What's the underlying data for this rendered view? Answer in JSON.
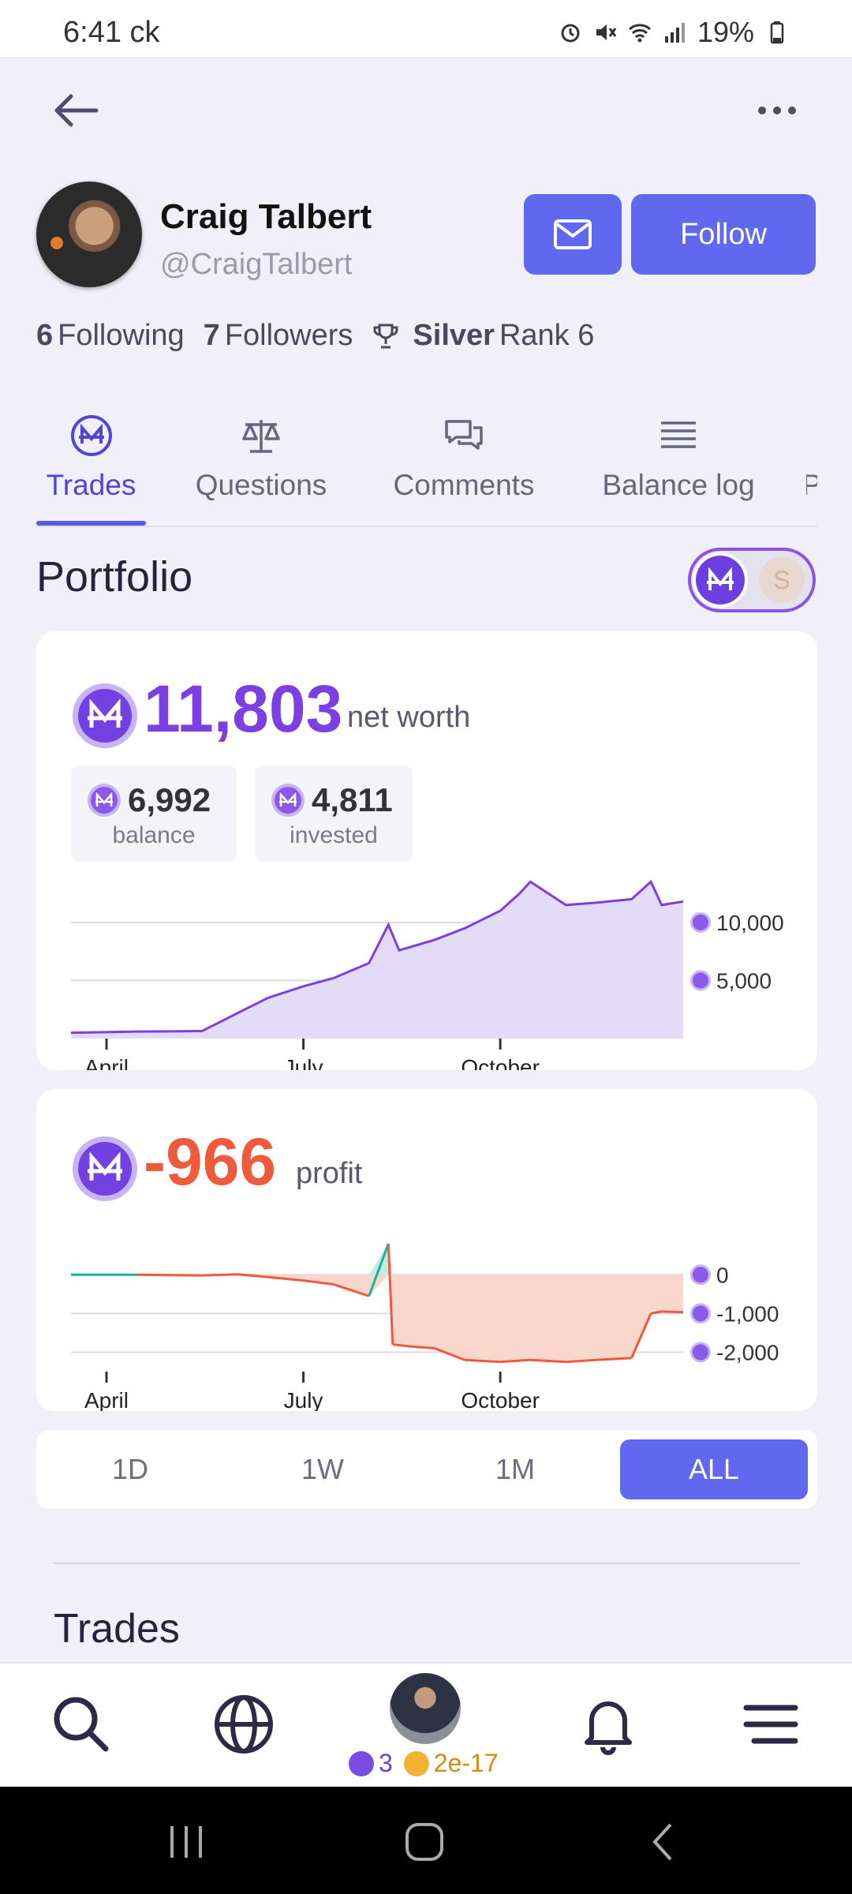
{
  "status_bar": {
    "time": "6:41",
    "carrier": "ck",
    "battery": "19%"
  },
  "profile": {
    "name": "Craig Talbert",
    "handle": "@CraigTalbert",
    "follow_label": "Follow",
    "following_count": "6",
    "following_label": "Following",
    "followers_count": "7",
    "followers_label": "Followers",
    "rank_tier": "Silver",
    "rank_label": "Rank 6"
  },
  "tabs": [
    {
      "label": "Trades",
      "icon": "mana-icon"
    },
    {
      "label": "Questions",
      "icon": "scale-icon"
    },
    {
      "label": "Comments",
      "icon": "chat-icon"
    },
    {
      "label": "Balance log",
      "icon": "list-icon"
    },
    {
      "label": "P",
      "icon": ""
    }
  ],
  "portfolio": {
    "title": "Portfolio",
    "net_worth_value": "11,803",
    "net_worth_label": "net worth",
    "balance_value": "6,992",
    "balance_label": "balance",
    "invested_value": "4,811",
    "invested_label": "invested",
    "profit_value": "-966",
    "profit_label": "profit"
  },
  "colors": {
    "accent": "#6168F0",
    "mana": "#7B3FE4",
    "profit_negative": "#EF5A3C",
    "profit_positive": "#19B497"
  },
  "chart_data": [
    {
      "type": "area",
      "title": "",
      "x_tick_labels": [
        "April",
        "July",
        "October"
      ],
      "y_tick_labels": [
        "10,000",
        "5,000"
      ],
      "ylim": [
        0,
        14000
      ],
      "grid": true,
      "series": [
        {
          "x": [
            "Mar 15",
            "Apr 01",
            "Apr 15",
            "May 01",
            "May 15",
            "Jun 01",
            "Jun 15",
            "Jul 01",
            "Jul 15",
            "Aug 01",
            "Aug 10",
            "Aug 15",
            "Sep 01",
            "Sep 15",
            "Oct 01",
            "Oct 10",
            "Oct 15",
            "Nov 01",
            "Nov 15",
            "Dec 01",
            "Dec 10",
            "Dec 15",
            "Dec 25"
          ],
          "y": [
            500,
            550,
            600,
            620,
            650,
            2200,
            3500,
            4500,
            5200,
            6500,
            9800,
            7600,
            8500,
            9500,
            11000,
            12500,
            13500,
            11500,
            11700,
            12000,
            13500,
            11500,
            11800
          ]
        }
      ]
    },
    {
      "type": "area",
      "title": "",
      "x_tick_labels": [
        "April",
        "July",
        "October"
      ],
      "y_tick_labels": [
        "0",
        "-1,000",
        "-2,000"
      ],
      "ylim": [
        -2500,
        800
      ],
      "grid": true,
      "series": [
        {
          "x": [
            "Mar 15",
            "Apr 15",
            "May 15",
            "Jun 01",
            "Jun 15",
            "Jul 01",
            "Jul 15",
            "Aug 01",
            "Aug 10",
            "Aug 12",
            "Aug 20",
            "Sep 01",
            "Sep 15",
            "Oct 01",
            "Oct 15",
            "Nov 01",
            "Nov 15",
            "Dec 01",
            "Dec 10",
            "Dec 15",
            "Dec 25"
          ],
          "y": [
            0,
            0,
            -20,
            10,
            -60,
            -150,
            -250,
            -550,
            800,
            -1800,
            -1850,
            -1900,
            -2200,
            -2250,
            -2200,
            -2250,
            -2200,
            -2150,
            -1000,
            -950,
            -966
          ]
        }
      ]
    }
  ],
  "range_buttons": [
    "1D",
    "1W",
    "1M",
    "ALL"
  ],
  "trades_section": {
    "title": "Trades"
  },
  "bottom_nav": {
    "mana_balance": "3",
    "sweep_balance": "2e-17"
  }
}
